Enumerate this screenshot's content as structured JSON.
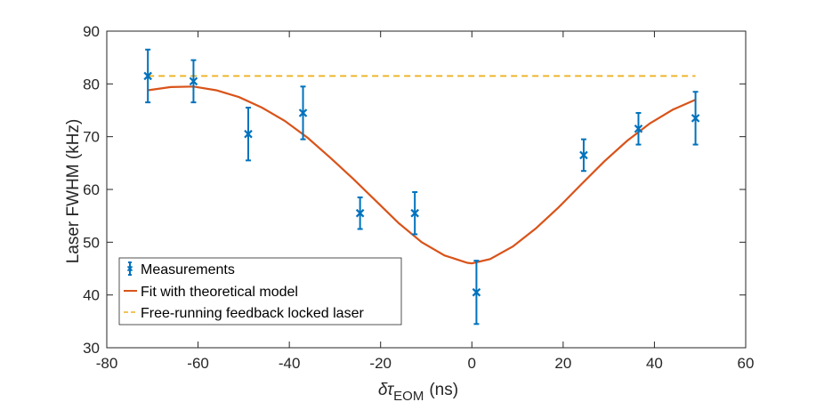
{
  "chart_data": {
    "type": "scatter",
    "title": "",
    "xlabel_symbol": "δτ",
    "xlabel_subscript": "EOM",
    "xlabel_unit": "(ns)",
    "ylabel": "Laser FWHM (kHz)",
    "xlim": [
      -80,
      60
    ],
    "ylim": [
      30,
      90
    ],
    "xticks": [
      -80,
      -60,
      -40,
      -20,
      0,
      20,
      40,
      60
    ],
    "yticks": [
      30,
      40,
      50,
      60,
      70,
      80,
      90
    ],
    "grid": false,
    "legend_position": "bottom-left",
    "series": [
      {
        "name": "Measurements",
        "kind": "errorbar",
        "color": "#0072BD",
        "points": [
          {
            "x": -71,
            "y": 81.5,
            "err": 5
          },
          {
            "x": -61,
            "y": 80.5,
            "err": 4
          },
          {
            "x": -49,
            "y": 70.5,
            "err": 5
          },
          {
            "x": -37,
            "y": 74.5,
            "err": 5
          },
          {
            "x": -24.5,
            "y": 55.5,
            "err": 3
          },
          {
            "x": -12.5,
            "y": 55.5,
            "err": 4
          },
          {
            "x": 1,
            "y": 40.5,
            "err": 6
          },
          {
            "x": 24.5,
            "y": 66.5,
            "err": 3
          },
          {
            "x": 36.5,
            "y": 71.5,
            "err": 3
          },
          {
            "x": 49,
            "y": 73.5,
            "err": 5
          }
        ]
      },
      {
        "name": "Fit with theoretical model",
        "kind": "line",
        "color": "#D95319",
        "x": [
          -71,
          -66,
          -61,
          -56,
          -51,
          -46,
          -41,
          -36,
          -31,
          -26,
          -21,
          -16,
          -11,
          -6,
          -1,
          0,
          4,
          9,
          14,
          19,
          24,
          29,
          34,
          39,
          44,
          49
        ],
        "y": [
          78.8,
          79.4,
          79.5,
          78.8,
          77.5,
          75.5,
          73.0,
          69.8,
          66.0,
          62.0,
          57.8,
          53.6,
          50.0,
          47.5,
          46.1,
          46.0,
          46.8,
          49.2,
          52.6,
          56.6,
          61.0,
          65.3,
          69.2,
          72.5,
          75.1,
          77.0
        ]
      },
      {
        "name": "Free-running feedback locked laser",
        "kind": "dashed-line",
        "color": "#EDB120",
        "x": [
          -71,
          49
        ],
        "y": [
          81.5,
          81.5
        ]
      }
    ]
  }
}
